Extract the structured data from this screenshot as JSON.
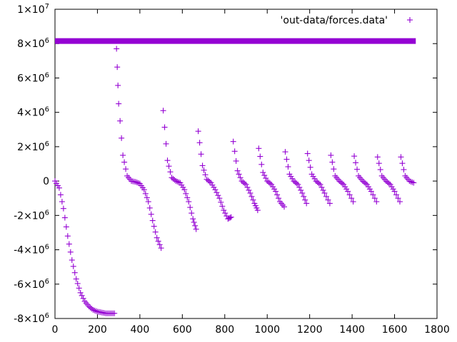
{
  "chart_data": {
    "type": "scatter",
    "title": "",
    "xlabel": "",
    "ylabel": "",
    "xlim": [
      0,
      1800
    ],
    "ylim": [
      -8000000,
      10000000
    ],
    "grid": false,
    "legend_position": "top-right",
    "x_ticks": [
      {
        "value": 0,
        "label": "0"
      },
      {
        "value": 200,
        "label": "200"
      },
      {
        "value": 400,
        "label": "400"
      },
      {
        "value": 600,
        "label": "600"
      },
      {
        "value": 800,
        "label": "800"
      },
      {
        "value": 1000,
        "label": "1000"
      },
      {
        "value": 1200,
        "label": "1200"
      },
      {
        "value": 1400,
        "label": "1400"
      },
      {
        "value": 1600,
        "label": "1600"
      },
      {
        "value": 1800,
        "label": "1800"
      }
    ],
    "y_ticks": [
      {
        "value": -8000000,
        "mant": "-8",
        "exp": "6"
      },
      {
        "value": -6000000,
        "mant": "-6",
        "exp": "6"
      },
      {
        "value": -4000000,
        "mant": "-4",
        "exp": "6"
      },
      {
        "value": -2000000,
        "mant": "-2",
        "exp": "6"
      },
      {
        "value": 0,
        "mant": "0",
        "exp": ""
      },
      {
        "value": 2000000,
        "mant": "2",
        "exp": "6"
      },
      {
        "value": 4000000,
        "mant": "4",
        "exp": "6"
      },
      {
        "value": 6000000,
        "mant": "6",
        "exp": "6"
      },
      {
        "value": 8000000,
        "mant": "8",
        "exp": "6"
      },
      {
        "value": 10000000,
        "mant": "1",
        "exp": "7"
      }
    ],
    "series": [
      {
        "name": "'out-data/forces.data'",
        "color": "#9400d3",
        "marker": "plus",
        "x": [
          0,
          20,
          40,
          60,
          80,
          100,
          120,
          140,
          160,
          180,
          200,
          220,
          240,
          260,
          280,
          290,
          300,
          320,
          340,
          360,
          380,
          400,
          420,
          440,
          460,
          480,
          500,
          510,
          530,
          550,
          570,
          590,
          610,
          630,
          650,
          665,
          675,
          695,
          715,
          735,
          755,
          775,
          795,
          815,
          830,
          840,
          860,
          880,
          900,
          920,
          940,
          955,
          960,
          980,
          1000,
          1020,
          1040,
          1060,
          1080,
          1085,
          1105,
          1125,
          1145,
          1165,
          1185,
          1190,
          1210,
          1230,
          1250,
          1270,
          1295,
          1300,
          1320,
          1340,
          1360,
          1380,
          1405,
          1410,
          1430,
          1450,
          1470,
          1490,
          1515,
          1520,
          1540,
          1560,
          1580,
          1600,
          1625,
          1630,
          1650,
          1670,
          1690
        ],
        "y": [
          0,
          -400000,
          -1600000,
          -3200000,
          -4600000,
          -5700000,
          -6500000,
          -7000000,
          -7300000,
          -7500000,
          -7600000,
          -7650000,
          -7700000,
          -7700000,
          -7700000,
          7700000,
          4500000,
          1500000,
          300000,
          0,
          -50000,
          -150000,
          -500000,
          -1200000,
          -2300000,
          -3300000,
          -3900000,
          4100000,
          1200000,
          200000,
          0,
          -100000,
          -500000,
          -1200000,
          -2200000,
          -2800000,
          2900000,
          900000,
          100000,
          -100000,
          -500000,
          -1000000,
          -1700000,
          -2200000,
          -2100000,
          2300000,
          600000,
          0,
          -200000,
          -700000,
          -1300000,
          -1700000,
          1900000,
          500000,
          0,
          -200000,
          -600000,
          -1200000,
          -1500000,
          1700000,
          400000,
          0,
          -200000,
          -700000,
          -1300000,
          1600000,
          400000,
          0,
          -200000,
          -700000,
          -1300000,
          1500000,
          300000,
          0,
          -200000,
          -600000,
          -1200000,
          1450000,
          300000,
          0,
          -200000,
          -600000,
          -1200000,
          1400000,
          300000,
          0,
          -200000,
          -600000,
          -1200000,
          1400000,
          300000,
          0,
          -100000
        ]
      }
    ],
    "reference_band": {
      "y": 8150000,
      "x_from": 0,
      "x_to": 1700
    }
  }
}
